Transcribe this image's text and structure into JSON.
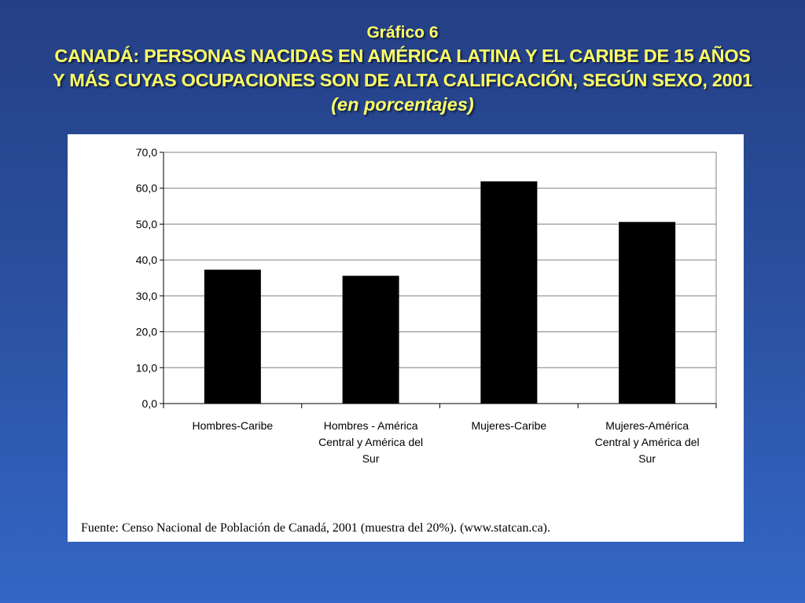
{
  "title": {
    "line0": "Gráfico 6",
    "line1": "CANADÁ: PERSONAS NACIDAS EN AMÉRICA LATINA Y EL CARIBE DE 15 AÑOS",
    "line2": "Y MÁS CUYAS OCUPACIONES SON DE ALTA CALIFICACIÓN, SEGÚN SEXO, 2001",
    "line3": "(en porcentajes)"
  },
  "source": "Fuente: Censo Nacional de Población de Canadá, 2001 (muestra del 20%). (www.statcan.ca).",
  "colors": {
    "title": "#ffff66",
    "bars": "#000000",
    "background": "#2a4f9c",
    "grid": "#808080"
  },
  "chart_data": {
    "type": "bar",
    "categories": [
      [
        "Hombres-Caribe"
      ],
      [
        "Hombres - América",
        "Central y América del",
        "Sur"
      ],
      [
        "Mujeres-Caribe"
      ],
      [
        "Mujeres-América",
        "Central y América del",
        "Sur"
      ]
    ],
    "values": [
      37.3,
      35.6,
      61.9,
      50.6
    ],
    "ylim": [
      0,
      70
    ],
    "yticks": [
      "0,0",
      "10,0",
      "20,0",
      "30,0",
      "40,0",
      "50,0",
      "60,0",
      "70,0"
    ],
    "grid": true,
    "legend": "none",
    "xlabel": "",
    "ylabel": ""
  }
}
